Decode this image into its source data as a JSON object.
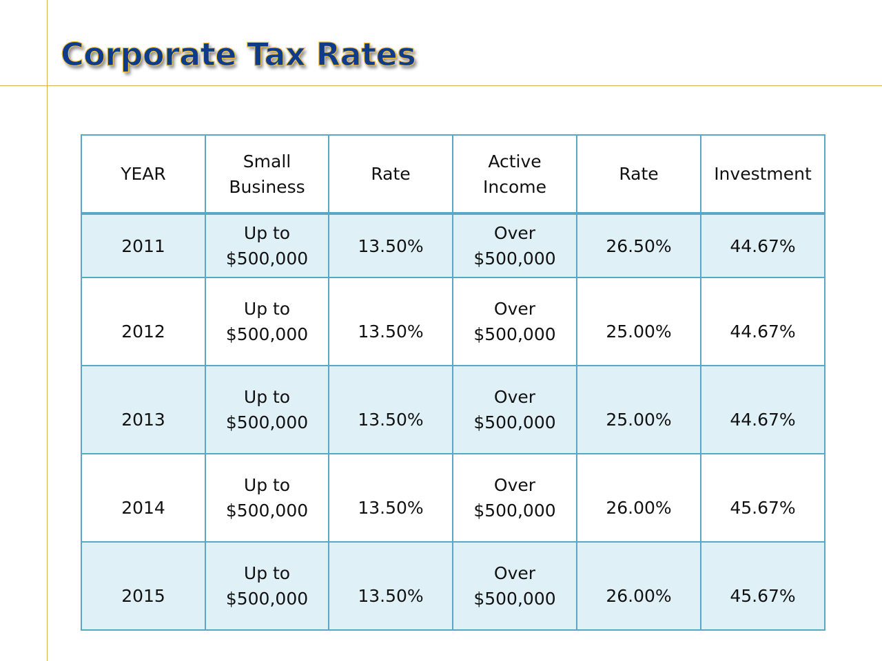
{
  "title": "Corporate Tax Rates",
  "colors": {
    "title_fill": "#0e3b8a",
    "title_outline": "#f0c040",
    "rule_lines": "#d4b24a",
    "table_border": "#5aa7c4",
    "row_shade": "#dff0f6"
  },
  "table": {
    "headers": [
      [
        "YEAR"
      ],
      [
        "Small",
        "Business"
      ],
      [
        "Rate"
      ],
      [
        "Active",
        "Income"
      ],
      [
        "Rate"
      ],
      [
        "Investment"
      ]
    ],
    "rows": [
      {
        "year": "2011",
        "small_business": [
          "Up to",
          "$500,000"
        ],
        "small_rate": "13.50%",
        "active_income": [
          "Over",
          "$500,000"
        ],
        "active_rate": "26.50%",
        "investment": "44.67%"
      },
      {
        "year": "2012",
        "small_business": [
          "Up to",
          "$500,000"
        ],
        "small_rate": "13.50%",
        "active_income": [
          "Over",
          "$500,000"
        ],
        "active_rate": "25.00%",
        "investment": "44.67%"
      },
      {
        "year": "2013",
        "small_business": [
          "Up to",
          "$500,000"
        ],
        "small_rate": "13.50%",
        "active_income": [
          "Over",
          "$500,000"
        ],
        "active_rate": "25.00%",
        "investment": "44.67%"
      },
      {
        "year": "2014",
        "small_business": [
          "Up to",
          "$500,000"
        ],
        "small_rate": "13.50%",
        "active_income": [
          "Over",
          "$500,000"
        ],
        "active_rate": "26.00%",
        "investment": "45.67%"
      },
      {
        "year": "2015",
        "small_business": [
          "Up to",
          "$500,000"
        ],
        "small_rate": "13.50%",
        "active_income": [
          "Over",
          "$500,000"
        ],
        "active_rate": "26.00%",
        "investment": "45.67%"
      }
    ]
  }
}
